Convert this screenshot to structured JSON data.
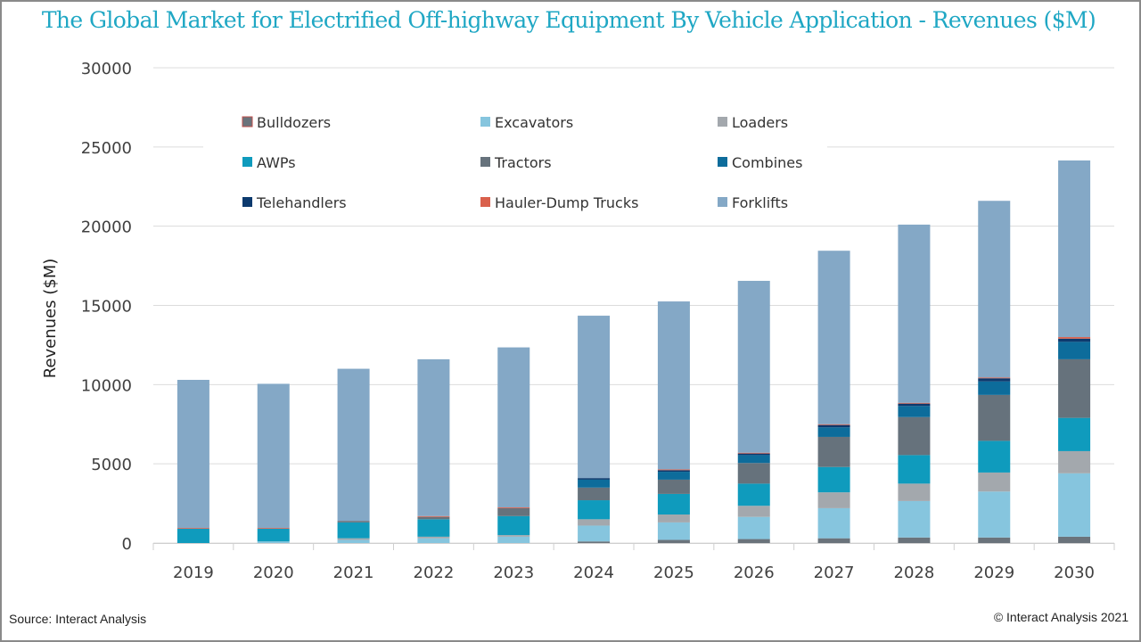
{
  "title": "The Global Market for Electrified Off-highway Equipment By Vehicle Application - Revenues ($M)",
  "source": "Source: Interact Analysis",
  "copyright": "© Interact Analysis 2021",
  "chart_data": {
    "type": "bar",
    "stacked": true,
    "title": "The Global Market for Electrified Off-highway Equipment By Vehicle Application - Revenues ($M)",
    "xlabel": "",
    "ylabel": "Revenues ($M)",
    "ylim": [
      0,
      30000
    ],
    "yticks": [
      0,
      5000,
      10000,
      15000,
      20000,
      25000,
      30000
    ],
    "grid": true,
    "legend_position": "top-left-inside",
    "categories": [
      "2019",
      "2020",
      "2021",
      "2022",
      "2023",
      "2024",
      "2025",
      "2026",
      "2027",
      "2028",
      "2029",
      "2030"
    ],
    "series": [
      {
        "name": "Bulldozers",
        "color": "#6a737b",
        "edge": "#c0504d",
        "values": [
          0,
          0,
          0,
          0,
          0,
          100,
          200,
          250,
          300,
          350,
          350,
          400
        ]
      },
      {
        "name": "Excavators",
        "color": "#86c5de",
        "values": [
          0,
          100,
          200,
          300,
          400,
          1000,
          1100,
          1400,
          1900,
          2300,
          2900,
          4000
        ]
      },
      {
        "name": "Loaders",
        "color": "#a3a8ad",
        "values": [
          0,
          0,
          100,
          100,
          100,
          400,
          500,
          700,
          1000,
          1100,
          1200,
          1400
        ]
      },
      {
        "name": "AWPs",
        "color": "#0f9bbd",
        "values": [
          900,
          800,
          1000,
          1100,
          1200,
          1200,
          1300,
          1400,
          1600,
          1800,
          2000,
          2100
        ]
      },
      {
        "name": "Tractors",
        "color": "#66727c",
        "values": [
          0,
          0,
          100,
          150,
          500,
          800,
          900,
          1300,
          1900,
          2400,
          2900,
          3700
        ]
      },
      {
        "name": "Combines",
        "color": "#0d6c9b",
        "values": [
          0,
          0,
          0,
          0,
          0,
          500,
          500,
          500,
          600,
          700,
          850,
          1100
        ]
      },
      {
        "name": "Telehandlers",
        "color": "#0c3a6e",
        "values": [
          0,
          0,
          0,
          0,
          0,
          100,
          100,
          100,
          150,
          150,
          200,
          200
        ]
      },
      {
        "name": "Hauler-Dump Trucks",
        "color": "#d9604c",
        "values": [
          50,
          50,
          0,
          50,
          50,
          0,
          50,
          50,
          50,
          50,
          50,
          100
        ]
      },
      {
        "name": "Forklifts",
        "color": "#84a8c6",
        "values": [
          9350,
          9100,
          9600,
          9900,
          10100,
          10250,
          10600,
          10850,
          10950,
          11250,
          11150,
          11150
        ]
      }
    ]
  }
}
